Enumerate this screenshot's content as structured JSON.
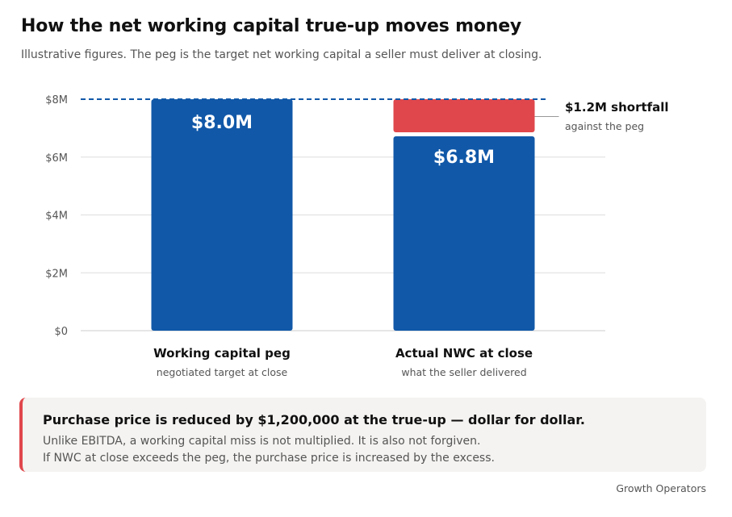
{
  "title": "How the net working capital true-up moves money",
  "subtitle": "Illustrative figures. The peg is the target net working capital a seller must deliver at closing.",
  "colors": {
    "bar": "#1158a8",
    "shortfall": "#e0474c",
    "peg_line": "#1158a8",
    "grid": "#dddddd",
    "axis_text": "#555555",
    "callout_bg": "#f4f3f1",
    "callout_border": "#e0474c"
  },
  "chart_data": {
    "type": "bar",
    "categories": [
      "Working capital peg",
      "Actual NWC at close"
    ],
    "category_sublabels": [
      "negotiated target at close",
      "what the seller delivered"
    ],
    "values": [
      8.0,
      6.8
    ],
    "data_labels": [
      "$8.0M",
      "$6.8M"
    ],
    "ylim": [
      0,
      8
    ],
    "yticks": [
      0,
      2,
      4,
      6,
      8
    ],
    "ytick_labels": [
      "$0",
      "$2M",
      "$4M",
      "$6M",
      "$8M"
    ],
    "peg_value": 8.0,
    "shortfall": {
      "category": "Actual NWC at close",
      "from": 6.8,
      "to": 8.0,
      "label": "$1.2M shortfall",
      "sublabel": "against the peg"
    },
    "grid": true
  },
  "callout": {
    "headline": "Purchase price is reduced by $1,200,000 at the true-up — dollar for dollar.",
    "line1": "Unlike EBITDA, a working capital miss is not multiplied. It is also not forgiven.",
    "line2": "If NWC at close exceeds the peg, the purchase price is increased by the excess."
  },
  "footer": "Growth Operators"
}
